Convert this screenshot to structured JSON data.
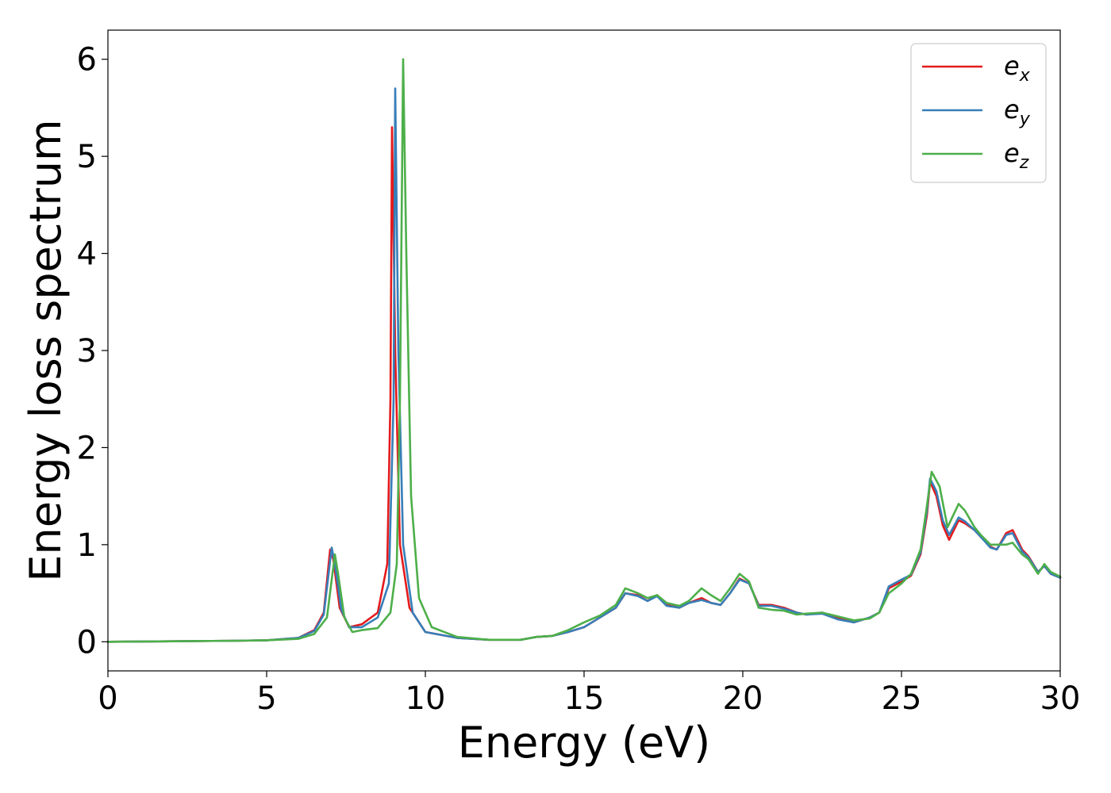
{
  "chart_data": {
    "type": "line",
    "title": "",
    "xlabel": "Energy (eV)",
    "ylabel": "Energy loss spectrum",
    "xlim": [
      0,
      30
    ],
    "ylim": [
      -0.3,
      6.3
    ],
    "xticks": [
      0,
      5,
      10,
      15,
      20,
      25,
      30
    ],
    "xtick_labels": [
      "0",
      "5",
      "10",
      "15",
      "20",
      "25",
      "30"
    ],
    "yticks": [
      0,
      1,
      2,
      3,
      4,
      5,
      6
    ],
    "ytick_labels": [
      "0",
      "1",
      "2",
      "3",
      "4",
      "5",
      "6"
    ],
    "grid": false,
    "legend_position": "top-right",
    "series": [
      {
        "name": "e_x",
        "label_base": "e",
        "label_sub": "x",
        "color": "#e41a1c",
        "points": [
          [
            0,
            0
          ],
          [
            2,
            0.005
          ],
          [
            4,
            0.01
          ],
          [
            5,
            0.015
          ],
          [
            6,
            0.04
          ],
          [
            6.5,
            0.12
          ],
          [
            6.8,
            0.3
          ],
          [
            7.0,
            0.95
          ],
          [
            7.1,
            0.85
          ],
          [
            7.3,
            0.35
          ],
          [
            7.6,
            0.15
          ],
          [
            8.0,
            0.18
          ],
          [
            8.5,
            0.3
          ],
          [
            8.8,
            0.8
          ],
          [
            8.9,
            2.5
          ],
          [
            8.95,
            5.3
          ],
          [
            9.05,
            3.0
          ],
          [
            9.2,
            1.0
          ],
          [
            9.5,
            0.35
          ],
          [
            10,
            0.1
          ],
          [
            11,
            0.04
          ],
          [
            12,
            0.02
          ],
          [
            13,
            0.02
          ],
          [
            13.5,
            0.05
          ],
          [
            14,
            0.06
          ],
          [
            14.5,
            0.1
          ],
          [
            15,
            0.15
          ],
          [
            15.5,
            0.25
          ],
          [
            16,
            0.35
          ],
          [
            16.3,
            0.5
          ],
          [
            16.7,
            0.48
          ],
          [
            17,
            0.42
          ],
          [
            17.3,
            0.48
          ],
          [
            17.6,
            0.38
          ],
          [
            18,
            0.35
          ],
          [
            18.3,
            0.4
          ],
          [
            18.7,
            0.45
          ],
          [
            19,
            0.4
          ],
          [
            19.3,
            0.38
          ],
          [
            19.6,
            0.5
          ],
          [
            19.9,
            0.65
          ],
          [
            20.2,
            0.6
          ],
          [
            20.5,
            0.38
          ],
          [
            20.9,
            0.38
          ],
          [
            21.3,
            0.35
          ],
          [
            21.7,
            0.3
          ],
          [
            22,
            0.28
          ],
          [
            22.5,
            0.3
          ],
          [
            23,
            0.24
          ],
          [
            23.5,
            0.2
          ],
          [
            24,
            0.25
          ],
          [
            24.3,
            0.3
          ],
          [
            24.6,
            0.55
          ],
          [
            25,
            0.62
          ],
          [
            25.3,
            0.68
          ],
          [
            25.6,
            0.9
          ],
          [
            25.8,
            1.3
          ],
          [
            25.9,
            1.65
          ],
          [
            26.1,
            1.5
          ],
          [
            26.3,
            1.2
          ],
          [
            26.5,
            1.05
          ],
          [
            26.8,
            1.25
          ],
          [
            27,
            1.22
          ],
          [
            27.3,
            1.15
          ],
          [
            27.5,
            1.08
          ],
          [
            27.8,
            0.98
          ],
          [
            28,
            0.95
          ],
          [
            28.3,
            1.12
          ],
          [
            28.5,
            1.15
          ],
          [
            28.8,
            0.95
          ],
          [
            29,
            0.88
          ],
          [
            29.3,
            0.72
          ],
          [
            29.5,
            0.78
          ],
          [
            29.7,
            0.7
          ],
          [
            30,
            0.66
          ]
        ]
      },
      {
        "name": "e_y",
        "label_base": "e",
        "label_sub": "y",
        "color": "#377eb8",
        "points": [
          [
            0,
            0
          ],
          [
            2,
            0.005
          ],
          [
            4,
            0.01
          ],
          [
            5,
            0.015
          ],
          [
            6,
            0.04
          ],
          [
            6.5,
            0.11
          ],
          [
            6.8,
            0.28
          ],
          [
            7.05,
            0.97
          ],
          [
            7.15,
            0.8
          ],
          [
            7.35,
            0.33
          ],
          [
            7.6,
            0.15
          ],
          [
            8.0,
            0.15
          ],
          [
            8.5,
            0.25
          ],
          [
            8.85,
            0.6
          ],
          [
            9.0,
            2.5
          ],
          [
            9.05,
            5.7
          ],
          [
            9.15,
            3.0
          ],
          [
            9.3,
            1.0
          ],
          [
            9.6,
            0.3
          ],
          [
            10,
            0.1
          ],
          [
            11,
            0.04
          ],
          [
            12,
            0.02
          ],
          [
            13,
            0.02
          ],
          [
            13.5,
            0.05
          ],
          [
            14,
            0.06
          ],
          [
            14.5,
            0.1
          ],
          [
            15,
            0.15
          ],
          [
            15.5,
            0.25
          ],
          [
            16,
            0.35
          ],
          [
            16.3,
            0.5
          ],
          [
            16.7,
            0.47
          ],
          [
            17,
            0.42
          ],
          [
            17.3,
            0.47
          ],
          [
            17.6,
            0.37
          ],
          [
            18,
            0.35
          ],
          [
            18.3,
            0.4
          ],
          [
            18.7,
            0.43
          ],
          [
            19,
            0.4
          ],
          [
            19.3,
            0.38
          ],
          [
            19.6,
            0.5
          ],
          [
            19.9,
            0.64
          ],
          [
            20.2,
            0.6
          ],
          [
            20.5,
            0.37
          ],
          [
            20.9,
            0.37
          ],
          [
            21.3,
            0.34
          ],
          [
            21.7,
            0.3
          ],
          [
            22,
            0.28
          ],
          [
            22.5,
            0.29
          ],
          [
            23,
            0.23
          ],
          [
            23.5,
            0.2
          ],
          [
            24,
            0.25
          ],
          [
            24.3,
            0.3
          ],
          [
            24.6,
            0.57
          ],
          [
            25,
            0.64
          ],
          [
            25.3,
            0.69
          ],
          [
            25.6,
            0.92
          ],
          [
            25.8,
            1.35
          ],
          [
            25.9,
            1.68
          ],
          [
            26.1,
            1.55
          ],
          [
            26.3,
            1.25
          ],
          [
            26.5,
            1.1
          ],
          [
            26.8,
            1.28
          ],
          [
            27,
            1.24
          ],
          [
            27.3,
            1.15
          ],
          [
            27.5,
            1.08
          ],
          [
            27.8,
            0.97
          ],
          [
            28,
            0.95
          ],
          [
            28.3,
            1.1
          ],
          [
            28.5,
            1.12
          ],
          [
            28.8,
            0.93
          ],
          [
            29,
            0.87
          ],
          [
            29.3,
            0.72
          ],
          [
            29.5,
            0.78
          ],
          [
            29.7,
            0.7
          ],
          [
            30,
            0.66
          ]
        ]
      },
      {
        "name": "e_z",
        "label_base": "e",
        "label_sub": "z",
        "color": "#4daf4a",
        "points": [
          [
            0,
            0
          ],
          [
            2,
            0.005
          ],
          [
            4,
            0.01
          ],
          [
            5,
            0.015
          ],
          [
            6,
            0.03
          ],
          [
            6.5,
            0.08
          ],
          [
            6.9,
            0.25
          ],
          [
            7.15,
            0.9
          ],
          [
            7.25,
            0.7
          ],
          [
            7.45,
            0.25
          ],
          [
            7.7,
            0.1
          ],
          [
            8.0,
            0.12
          ],
          [
            8.5,
            0.14
          ],
          [
            8.9,
            0.3
          ],
          [
            9.1,
            0.8
          ],
          [
            9.2,
            2.5
          ],
          [
            9.3,
            6.0
          ],
          [
            9.4,
            4.0
          ],
          [
            9.55,
            1.5
          ],
          [
            9.8,
            0.45
          ],
          [
            10.2,
            0.15
          ],
          [
            11,
            0.05
          ],
          [
            12,
            0.02
          ],
          [
            13,
            0.02
          ],
          [
            13.5,
            0.05
          ],
          [
            14,
            0.06
          ],
          [
            14.5,
            0.12
          ],
          [
            15,
            0.2
          ],
          [
            15.5,
            0.27
          ],
          [
            16,
            0.38
          ],
          [
            16.3,
            0.55
          ],
          [
            16.7,
            0.5
          ],
          [
            17,
            0.45
          ],
          [
            17.3,
            0.48
          ],
          [
            17.6,
            0.4
          ],
          [
            18,
            0.37
          ],
          [
            18.3,
            0.42
          ],
          [
            18.7,
            0.55
          ],
          [
            19,
            0.48
          ],
          [
            19.3,
            0.42
          ],
          [
            19.6,
            0.55
          ],
          [
            19.9,
            0.7
          ],
          [
            20.2,
            0.62
          ],
          [
            20.5,
            0.35
          ],
          [
            20.9,
            0.33
          ],
          [
            21.3,
            0.32
          ],
          [
            21.7,
            0.28
          ],
          [
            22,
            0.29
          ],
          [
            22.5,
            0.3
          ],
          [
            23,
            0.26
          ],
          [
            23.5,
            0.22
          ],
          [
            24,
            0.24
          ],
          [
            24.3,
            0.3
          ],
          [
            24.6,
            0.5
          ],
          [
            25,
            0.6
          ],
          [
            25.3,
            0.7
          ],
          [
            25.6,
            0.95
          ],
          [
            25.8,
            1.4
          ],
          [
            25.95,
            1.75
          ],
          [
            26.2,
            1.6
          ],
          [
            26.45,
            1.18
          ],
          [
            26.8,
            1.42
          ],
          [
            27,
            1.35
          ],
          [
            27.3,
            1.18
          ],
          [
            27.5,
            1.1
          ],
          [
            27.8,
            1.0
          ],
          [
            28,
            1.0
          ],
          [
            28.3,
            1.0
          ],
          [
            28.5,
            1.02
          ],
          [
            28.8,
            0.9
          ],
          [
            29,
            0.85
          ],
          [
            29.3,
            0.7
          ],
          [
            29.5,
            0.8
          ],
          [
            29.7,
            0.72
          ],
          [
            30,
            0.67
          ]
        ]
      }
    ]
  }
}
